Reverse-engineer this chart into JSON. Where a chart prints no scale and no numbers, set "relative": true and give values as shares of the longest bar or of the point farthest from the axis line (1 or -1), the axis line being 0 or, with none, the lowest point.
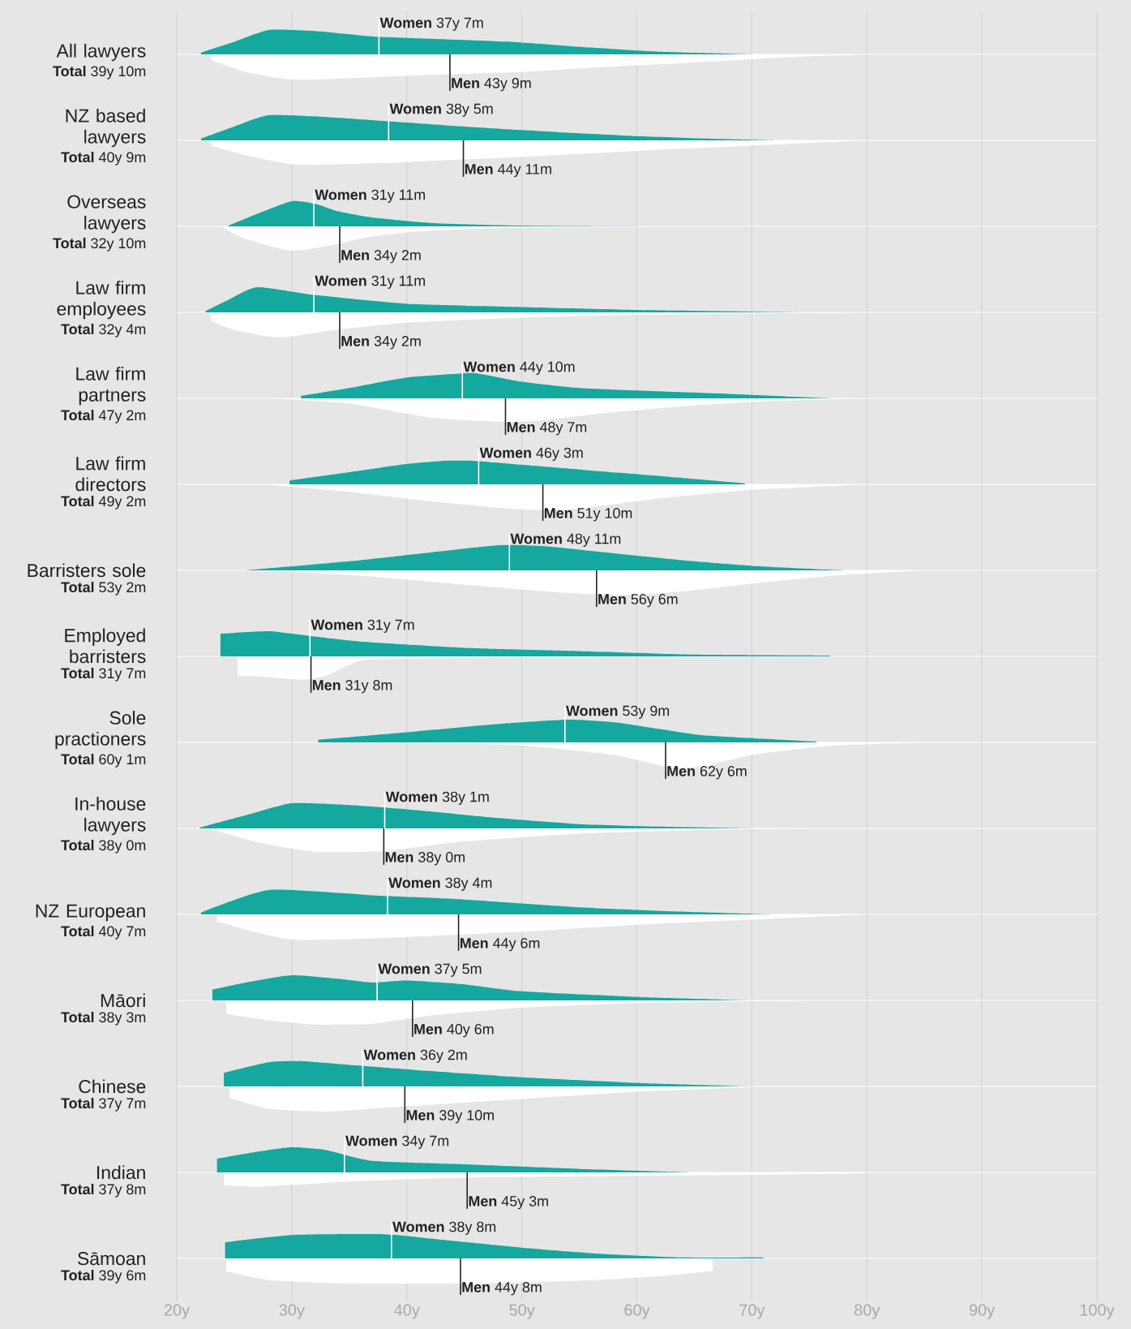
{
  "chart_data": [
    {
      "type": "area",
      "title": "All lawyers",
      "subtitle": "**Total** 39y 10m",
      "relative": true,
      "xlim": [
        20,
        100
      ],
      "xticks": [
        20,
        30,
        40,
        50,
        60,
        70,
        80,
        90,
        100
      ],
      "grid": "x",
      "tick_labels": false,
      "series": [
        {
          "color": "#14a89e",
          "x": [
            22.1,
            25,
            28,
            32,
            37.5,
            45,
            50,
            56,
            62,
            70
          ],
          "values": [
            0.07,
            0.5,
            0.97,
            0.93,
            0.7,
            0.57,
            0.47,
            0.27,
            0.1,
            0
          ]
        },
        {
          "color": "#ffffff",
          "x": [
            23,
            26,
            30,
            35,
            41,
            50,
            56,
            62,
            67,
            73,
            80
          ],
          "values": [
            -0.23,
            -0.7,
            -1,
            -0.95,
            -0.83,
            -0.7,
            -0.53,
            -0.4,
            -0.27,
            -0.12,
            0
          ]
        }
      ],
      "ref_lines": [
        {
          "axis": "x",
          "value": 37.58,
          "label": "**Women** 37y 7m",
          "color": "#ffffff"
        },
        {
          "axis": "x",
          "value": 43.75,
          "label": "**Men** 43y 9m",
          "color": "#222222"
        }
      ]
    },
    {
      "type": "area",
      "title": "NZ based lawyers",
      "subtitle": "**Total** 40y 9m",
      "relative": true,
      "xlim": [
        20,
        100
      ],
      "xticks": [
        20,
        30,
        40,
        50,
        60,
        70,
        80,
        90,
        100
      ],
      "grid": "x",
      "tick_labels": false,
      "series": [
        {
          "color": "#14a89e",
          "x": [
            22.1,
            25,
            28,
            33,
            38.4,
            45,
            50,
            55,
            60,
            66,
            72
          ],
          "values": [
            0.07,
            0.55,
            1,
            0.93,
            0.76,
            0.55,
            0.41,
            0.28,
            0.17,
            0.07,
            0
          ]
        },
        {
          "color": "#ffffff",
          "x": [
            23,
            26,
            30.5,
            38,
            45,
            50,
            56,
            63,
            70,
            80
          ],
          "values": [
            -0.21,
            -0.6,
            -0.97,
            -0.9,
            -0.76,
            -0.66,
            -0.52,
            -0.35,
            -0.21,
            0
          ]
        }
      ],
      "ref_lines": [
        {
          "axis": "x",
          "value": 38.42,
          "label": "**Women** 38y 5m",
          "color": "#ffffff"
        },
        {
          "axis": "x",
          "value": 44.92,
          "label": "**Men** 44y 11m",
          "color": "#222222"
        }
      ]
    },
    {
      "type": "area",
      "title": "Overseas lawyers",
      "subtitle": "**Total** 32y 10m",
      "relative": true,
      "xlim": [
        20,
        100
      ],
      "xticks": [
        20,
        30,
        40,
        50,
        60,
        70,
        80,
        90,
        100
      ],
      "grid": "x",
      "tick_labels": false,
      "series": [
        {
          "color": "#14a89e",
          "x": [
            24.5,
            27,
            30,
            32,
            34,
            37,
            42,
            50,
            60
          ],
          "values": [
            0.03,
            0.5,
            1,
            0.9,
            0.6,
            0.35,
            0.14,
            0.03,
            0
          ]
        },
        {
          "color": "#ffffff",
          "x": [
            24,
            26,
            30,
            34,
            37,
            42,
            50,
            62
          ],
          "values": [
            -0.05,
            -0.5,
            -0.97,
            -0.7,
            -0.4,
            -0.17,
            -0.05,
            0
          ]
        }
      ],
      "ref_lines": [
        {
          "axis": "x",
          "value": 31.92,
          "label": "**Women** 31y 11m",
          "color": "#ffffff"
        },
        {
          "axis": "x",
          "value": 34.17,
          "label": "**Men** 34y 2m",
          "color": "#222222"
        }
      ]
    },
    {
      "type": "area",
      "title": "Law firm employees",
      "subtitle": "**Total** 32y 4m",
      "relative": true,
      "xlim": [
        20,
        100
      ],
      "xticks": [
        20,
        30,
        40,
        50,
        60,
        70,
        80,
        90,
        100
      ],
      "grid": "x",
      "tick_labels": false,
      "series": [
        {
          "color": "#14a89e",
          "x": [
            22.5,
            24.5,
            27,
            32,
            40,
            50,
            60,
            75
          ],
          "values": [
            0.05,
            0.5,
            1,
            0.69,
            0.34,
            0.21,
            0.1,
            0
          ]
        },
        {
          "color": "#ffffff",
          "x": [
            23,
            25,
            29,
            34,
            40,
            50,
            60,
            80
          ],
          "values": [
            -0.34,
            -0.7,
            -1,
            -0.69,
            -0.41,
            -0.21,
            -0.1,
            0
          ]
        }
      ],
      "ref_lines": [
        {
          "axis": "x",
          "value": 31.92,
          "label": "**Women** 31y 11m",
          "color": "#ffffff"
        },
        {
          "axis": "x",
          "value": 34.17,
          "label": "**Men** 34y 2m",
          "color": "#222222"
        }
      ]
    },
    {
      "type": "area",
      "title": "Law firm partners",
      "subtitle": "**Total** 47y 2m",
      "relative": true,
      "xlim": [
        20,
        100
      ],
      "xticks": [
        20,
        30,
        40,
        50,
        60,
        70,
        80,
        90,
        100
      ],
      "grid": "x",
      "tick_labels": false,
      "series": [
        {
          "color": "#14a89e",
          "x": [
            30.8,
            35,
            40,
            44,
            46,
            50,
            55,
            62,
            70,
            77
          ],
          "values": [
            0.1,
            0.41,
            0.83,
            0.97,
            1,
            0.66,
            0.41,
            0.28,
            0.14,
            0
          ]
        },
        {
          "color": "#ffffff",
          "x": [
            28.5,
            35,
            42,
            48,
            52,
            58,
            65,
            72,
            80
          ],
          "values": [
            0,
            -0.21,
            -0.76,
            -0.93,
            -0.86,
            -0.55,
            -0.28,
            -0.1,
            0
          ]
        }
      ],
      "ref_lines": [
        {
          "axis": "x",
          "value": 44.83,
          "label": "**Women** 44y 10m",
          "color": "#ffffff"
        },
        {
          "axis": "x",
          "value": 48.58,
          "label": "**Men** 48y 7m",
          "color": "#222222"
        }
      ]
    },
    {
      "type": "area",
      "title": "Law firm directors",
      "subtitle": "**Total** 49y 2m",
      "relative": true,
      "xlim": [
        20,
        100
      ],
      "xticks": [
        20,
        30,
        40,
        50,
        60,
        70,
        80,
        90,
        100
      ],
      "grid": "x",
      "tick_labels": false,
      "series": [
        {
          "color": "#14a89e",
          "x": [
            29.8,
            35,
            40,
            43,
            46,
            50,
            55,
            62,
            69.4
          ],
          "values": [
            0.15,
            0.48,
            0.81,
            0.93,
            0.93,
            0.78,
            0.59,
            0.33,
            0.04
          ]
        },
        {
          "color": "#ffffff",
          "x": [
            27.5,
            35,
            42,
            50,
            55,
            62,
            70,
            80
          ],
          "values": [
            0,
            -0.3,
            -0.67,
            -1,
            -0.96,
            -0.56,
            -0.22,
            0
          ]
        }
      ],
      "ref_lines": [
        {
          "axis": "x",
          "value": 46.25,
          "label": "**Women** 46y 3m",
          "color": "#ffffff"
        },
        {
          "axis": "x",
          "value": 51.83,
          "label": "**Men** 51y 10m",
          "color": "#222222"
        }
      ]
    },
    {
      "type": "area",
      "title": "Barristers sole",
      "subtitle": "**Total** 53y 2m",
      "relative": true,
      "xlim": [
        20,
        100
      ],
      "xticks": [
        20,
        30,
        40,
        50,
        60,
        70,
        80,
        90,
        100
      ],
      "grid": "x",
      "tick_labels": false,
      "series": [
        {
          "color": "#14a89e",
          "x": [
            26,
            35,
            42,
            48,
            52,
            58,
            65,
            70,
            78
          ],
          "values": [
            0,
            0.36,
            0.71,
            1,
            0.96,
            0.68,
            0.36,
            0.18,
            0
          ]
        },
        {
          "color": "#ffffff",
          "x": [
            26,
            35,
            45,
            55,
            60,
            65,
            72,
            78,
            85
          ],
          "values": [
            0,
            -0.18,
            -0.57,
            -0.93,
            -0.96,
            -0.79,
            -0.43,
            -0.18,
            0
          ]
        }
      ],
      "ref_lines": [
        {
          "axis": "x",
          "value": 48.92,
          "label": "**Women** 48y 11m",
          "color": "#ffffff"
        },
        {
          "axis": "x",
          "value": 56.5,
          "label": "**Men** 56y 6m",
          "color": "#222222"
        }
      ]
    },
    {
      "type": "area",
      "title": "Employed barristers",
      "subtitle": "**Total** 31y 7m",
      "relative": true,
      "xlim": [
        20,
        100
      ],
      "xticks": [
        20,
        30,
        40,
        50,
        60,
        70,
        80,
        90,
        100
      ],
      "grid": "x",
      "tick_labels": false,
      "series": [
        {
          "color": "#14a89e",
          "x": [
            23.8,
            28,
            32,
            36,
            45,
            55,
            65,
            76.8
          ],
          "values": [
            0.9,
            1,
            0.79,
            0.59,
            0.34,
            0.21,
            0.07,
            0.03
          ]
        },
        {
          "color": "#ffffff",
          "x": [
            25.3,
            28,
            31,
            33,
            36,
            40,
            50,
            62
          ],
          "values": [
            -0.76,
            -0.83,
            -0.93,
            -0.76,
            -0.17,
            -0.1,
            -0.03,
            0
          ]
        }
      ],
      "ref_lines": [
        {
          "axis": "x",
          "value": 31.58,
          "label": "**Women** 31y 7m",
          "color": "#ffffff"
        },
        {
          "axis": "x",
          "value": 31.67,
          "label": "**Men** 31y 8m",
          "color": "#222222"
        }
      ]
    },
    {
      "type": "area",
      "title": "Sole practioners",
      "subtitle": "**Total** 60y 1m",
      "relative": true,
      "xlim": [
        20,
        100
      ],
      "xticks": [
        20,
        30,
        40,
        50,
        60,
        70,
        80,
        90,
        100
      ],
      "grid": "x",
      "tick_labels": false,
      "series": [
        {
          "color": "#14a89e",
          "x": [
            32.3,
            40,
            48,
            54,
            58,
            62,
            66,
            75.6
          ],
          "values": [
            0.1,
            0.4,
            0.73,
            0.9,
            0.8,
            0.53,
            0.27,
            0.03
          ]
        },
        {
          "color": "#ffffff",
          "x": [
            40,
            50,
            58,
            63,
            66,
            70,
            77,
            86
          ],
          "values": [
            0,
            -0.13,
            -0.5,
            -1,
            -0.93,
            -0.5,
            -0.13,
            0
          ]
        }
      ],
      "ref_lines": [
        {
          "axis": "x",
          "value": 53.75,
          "label": "**Women** 53y 9m",
          "color": "#ffffff"
        },
        {
          "axis": "x",
          "value": 62.5,
          "label": "**Men** 62y 6m",
          "color": "#222222"
        }
      ]
    },
    {
      "type": "area",
      "title": "In-house lawyers",
      "subtitle": "**Total** 38y 0m",
      "relative": true,
      "xlim": [
        20,
        100
      ],
      "xticks": [
        20,
        30,
        40,
        50,
        60,
        70,
        80,
        90,
        100
      ],
      "grid": "x",
      "tick_labels": false,
      "series": [
        {
          "color": "#14a89e",
          "x": [
            22,
            26,
            30,
            35,
            40,
            48,
            55,
            62,
            70
          ],
          "values": [
            0.03,
            0.52,
            1,
            0.93,
            0.76,
            0.41,
            0.17,
            0.07,
            0
          ]
        },
        {
          "color": "#ffffff",
          "x": [
            23.5,
            27,
            32,
            38,
            45,
            55,
            65,
            75
          ],
          "values": [
            -0.1,
            -0.55,
            -0.93,
            -0.9,
            -0.52,
            -0.21,
            -0.07,
            0
          ]
        }
      ],
      "ref_lines": [
        {
          "axis": "x",
          "value": 38.08,
          "label": "**Women** 38y 1m",
          "color": "#ffffff"
        },
        {
          "axis": "x",
          "value": 38.0,
          "label": "**Men** 38y 0m",
          "color": "#222222"
        }
      ]
    },
    {
      "type": "area",
      "title": "NZ European",
      "subtitle": "**Total** 40y 7m",
      "relative": true,
      "xlim": [
        20,
        100
      ],
      "xticks": [
        20,
        30,
        40,
        50,
        60,
        70,
        80,
        90,
        100
      ],
      "grid": "x",
      "tick_labels": false,
      "series": [
        {
          "color": "#14a89e",
          "x": [
            22.1,
            28,
            37,
            45,
            55,
            62,
            72
          ],
          "values": [
            0.07,
            0.97,
            0.76,
            0.59,
            0.28,
            0.14,
            0
          ]
        },
        {
          "color": "#ffffff",
          "x": [
            23.5,
            30,
            40,
            50,
            60,
            70,
            80
          ],
          "values": [
            -0.28,
            -1,
            -0.9,
            -0.69,
            -0.41,
            -0.21,
            0
          ]
        }
      ],
      "ref_lines": [
        {
          "axis": "x",
          "value": 38.33,
          "label": "**Women** 38y 4m",
          "color": "#ffffff"
        },
        {
          "axis": "x",
          "value": 44.5,
          "label": "**Men** 44y 6m",
          "color": "#222222"
        }
      ]
    },
    {
      "type": "area",
      "title": "Māori",
      "subtitle": "**Total** 38y 3m",
      "relative": true,
      "xlim": [
        20,
        100
      ],
      "xticks": [
        20,
        30,
        40,
        50,
        60,
        70,
        80,
        90,
        100
      ],
      "grid": "x",
      "tick_labels": false,
      "series": [
        {
          "color": "#14a89e",
          "x": [
            23.1,
            26,
            30,
            34,
            37,
            40,
            45,
            50,
            60,
            70
          ],
          "values": [
            0.43,
            0.71,
            1,
            0.86,
            0.71,
            0.79,
            0.64,
            0.36,
            0.14,
            0
          ]
        },
        {
          "color": "#ffffff",
          "x": [
            24.3,
            28,
            32,
            37,
            42,
            50,
            60,
            75
          ],
          "values": [
            -0.54,
            -0.79,
            -0.96,
            -0.93,
            -0.61,
            -0.29,
            -0.11,
            0
          ]
        }
      ],
      "ref_lines": [
        {
          "axis": "x",
          "value": 37.42,
          "label": "**Women** 37y 5m",
          "color": "#ffffff"
        },
        {
          "axis": "x",
          "value": 40.5,
          "label": "**Men** 40y 6m",
          "color": "#222222"
        }
      ]
    },
    {
      "type": "area",
      "title": "Chinese",
      "subtitle": "**Total** 37y 7m",
      "relative": true,
      "xlim": [
        20,
        100
      ],
      "xticks": [
        20,
        30,
        40,
        50,
        60,
        70,
        80,
        90,
        100
      ],
      "grid": "x",
      "tick_labels": false,
      "series": [
        {
          "color": "#14a89e",
          "x": [
            24.1,
            28,
            31,
            36,
            42,
            50,
            60,
            70
          ],
          "values": [
            0.54,
            0.96,
            1,
            0.82,
            0.61,
            0.36,
            0.14,
            0
          ]
        },
        {
          "color": "#ffffff",
          "x": [
            24.6,
            28,
            33,
            40,
            50,
            60,
            69.5
          ],
          "values": [
            -0.46,
            -0.89,
            -1,
            -0.79,
            -0.5,
            -0.21,
            -0.04
          ]
        }
      ],
      "ref_lines": [
        {
          "axis": "x",
          "value": 36.17,
          "label": "**Women** 36y 2m",
          "color": "#ffffff"
        },
        {
          "axis": "x",
          "value": 39.83,
          "label": "**Men** 39y 10m",
          "color": "#222222"
        }
      ]
    },
    {
      "type": "area",
      "title": "Indian",
      "subtitle": "**Total** 37y 8m",
      "relative": true,
      "xlim": [
        20,
        100
      ],
      "xticks": [
        20,
        30,
        40,
        50,
        60,
        70,
        80,
        90,
        100
      ],
      "grid": "x",
      "tick_labels": false,
      "series": [
        {
          "color": "#14a89e",
          "x": [
            23.5,
            27,
            30,
            33,
            37,
            45,
            55,
            65
          ],
          "values": [
            0.54,
            0.82,
            1,
            0.89,
            0.46,
            0.32,
            0.14,
            0
          ]
        },
        {
          "color": "#ffffff",
          "x": [
            24.1,
            27,
            35,
            45,
            60,
            70,
            79.8
          ],
          "values": [
            -0.5,
            -0.57,
            -0.36,
            -0.21,
            -0.14,
            -0.1,
            -0.04
          ]
        }
      ],
      "ref_lines": [
        {
          "axis": "x",
          "value": 34.58,
          "label": "**Women** 34y 7m",
          "color": "#ffffff"
        },
        {
          "axis": "x",
          "value": 45.25,
          "label": "**Men** 45y 3m",
          "color": "#222222"
        }
      ]
    },
    {
      "type": "area",
      "title": "Sāmoan",
      "subtitle": "**Total** 39y 6m",
      "relative": true,
      "xlim": [
        20,
        100
      ],
      "xticks": [
        {
          "value": 20,
          "label": "20y"
        },
        {
          "value": 30,
          "label": "30y"
        },
        {
          "value": 40,
          "label": "40y"
        },
        {
          "value": 50,
          "label": "50y"
        },
        {
          "value": 60,
          "label": "60y"
        },
        {
          "value": 70,
          "label": "70y"
        },
        {
          "value": 80,
          "label": "80y"
        },
        {
          "value": 90,
          "label": "90y"
        },
        {
          "value": 100,
          "label": "100y"
        }
      ],
      "grid": "x",
      "tick_labels": "x",
      "series": [
        {
          "color": "#14a89e",
          "x": [
            24.2,
            30,
            38,
            42,
            50,
            57,
            64,
            71
          ],
          "values": [
            0.64,
            0.93,
            0.96,
            0.79,
            0.43,
            0.18,
            0.04,
            0.04
          ]
        },
        {
          "color": "#ffffff",
          "x": [
            24.3,
            28,
            35,
            45,
            55,
            62,
            66.6
          ],
          "values": [
            -0.5,
            -0.86,
            -1,
            -1,
            -0.89,
            -0.71,
            -0.5
          ]
        }
      ],
      "ref_lines": [
        {
          "axis": "x",
          "value": 38.67,
          "label": "**Women** 38y 8m",
          "color": "#ffffff"
        },
        {
          "axis": "x",
          "value": 44.67,
          "label": "**Men** 44y 8m",
          "color": "#222222"
        }
      ]
    }
  ]
}
